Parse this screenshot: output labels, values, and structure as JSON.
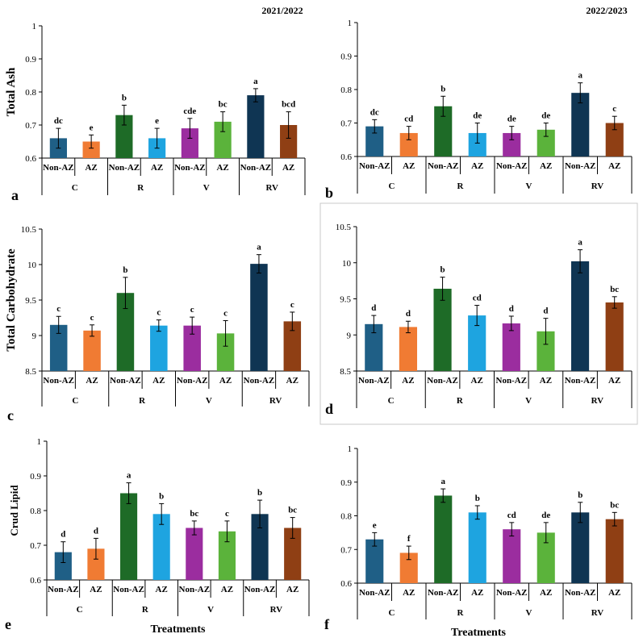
{
  "figure": {
    "season_labels": [
      "2021/2022",
      "2022/2023"
    ],
    "xlabel": "Treatments",
    "colors": [
      "#1f5f86",
      "#f07b33",
      "#1e6b27",
      "#1ea4e0",
      "#9b2d9f",
      "#5bb33b",
      "#0f3553",
      "#8f3f14"
    ]
  },
  "chart_data": [
    {
      "panel": "a",
      "type": "bar",
      "title": "2021/2022",
      "ylabel": "Total Ash",
      "xlabel": "",
      "ylim": [
        0.6,
        1
      ],
      "yticks": [
        0.6,
        0.7,
        0.8,
        0.9,
        1
      ],
      "ytick_labels": [
        "0.6",
        "0.7",
        "0.8",
        "0.9",
        "1"
      ],
      "groups": [
        "C",
        "R",
        "V",
        "RV"
      ],
      "categories": [
        "Non-AZ",
        "AZ",
        "Non-AZ",
        "AZ",
        "Non-AZ",
        "AZ",
        "Non-AZ",
        "AZ"
      ],
      "values": [
        0.66,
        0.65,
        0.73,
        0.66,
        0.69,
        0.71,
        0.79,
        0.7
      ],
      "errors": [
        0.03,
        0.02,
        0.03,
        0.03,
        0.03,
        0.03,
        0.02,
        0.04
      ],
      "letters": [
        "dc",
        "e",
        "b",
        "e",
        "cde",
        "bc",
        "a",
        "bcd"
      ]
    },
    {
      "panel": "b",
      "type": "bar",
      "title": "2022/2023",
      "ylabel": "",
      "xlabel": "",
      "ylim": [
        0.6,
        1
      ],
      "yticks": [
        0.6,
        0.7,
        0.8,
        0.9,
        1
      ],
      "ytick_labels": [
        "0.6",
        "0.7",
        "0.8",
        "0.9",
        "1"
      ],
      "groups": [
        "C",
        "R",
        "V",
        "RV"
      ],
      "categories": [
        "Non-AZ",
        "AZ",
        "Non-AZ",
        "AZ",
        "Non-AZ",
        "AZ",
        "Non-AZ",
        "AZ"
      ],
      "values": [
        0.69,
        0.67,
        0.75,
        0.67,
        0.67,
        0.68,
        0.79,
        0.7
      ],
      "errors": [
        0.02,
        0.02,
        0.03,
        0.03,
        0.02,
        0.02,
        0.03,
        0.02
      ],
      "letters": [
        "dc",
        "cd",
        "b",
        "de",
        "de",
        "de",
        "a",
        "c"
      ]
    },
    {
      "panel": "c",
      "type": "bar",
      "title": "",
      "ylabel": "Total Carbohydrate",
      "xlabel": "",
      "ylim": [
        8.5,
        10.5
      ],
      "yticks": [
        8.5,
        9,
        9.5,
        10,
        10.5
      ],
      "ytick_labels": [
        "8.5",
        "9",
        "9.5",
        "10",
        "10.5"
      ],
      "groups": [
        "C",
        "R",
        "V",
        "RV"
      ],
      "categories": [
        "Non-AZ",
        "AZ",
        "Non-AZ",
        "AZ",
        "Non-AZ",
        "AZ",
        "Non-AZ",
        "AZ"
      ],
      "values": [
        9.15,
        9.07,
        9.6,
        9.14,
        9.14,
        9.03,
        10.01,
        9.2
      ],
      "errors": [
        0.12,
        0.08,
        0.22,
        0.08,
        0.12,
        0.18,
        0.13,
        0.13
      ],
      "letters": [
        "c",
        "c",
        "b",
        "c",
        "c",
        "c",
        "a",
        "c"
      ]
    },
    {
      "panel": "d",
      "type": "bar",
      "title": "",
      "ylabel": "",
      "xlabel": "",
      "ylim": [
        8.5,
        10.5
      ],
      "yticks": [
        8.5,
        9,
        9.5,
        10,
        10.5
      ],
      "ytick_labels": [
        "8.5",
        "9",
        "9.5",
        "10",
        "10.5"
      ],
      "groups": [
        "C",
        "R",
        "V",
        "RV"
      ],
      "categories": [
        "Non-AZ",
        "AZ",
        "Non-AZ",
        "AZ",
        "Non-AZ",
        "AZ",
        "Non-AZ",
        "AZ"
      ],
      "values": [
        9.15,
        9.11,
        9.64,
        9.27,
        9.16,
        9.05,
        10.02,
        9.45
      ],
      "errors": [
        0.12,
        0.08,
        0.16,
        0.14,
        0.1,
        0.18,
        0.16,
        0.08
      ],
      "letters": [
        "d",
        "d",
        "b",
        "cd",
        "d",
        "d",
        "a",
        "bc"
      ]
    },
    {
      "panel": "e",
      "type": "bar",
      "title": "",
      "ylabel": "Crud Lipid",
      "xlabel": "Treatments",
      "ylim": [
        0.6,
        1
      ],
      "yticks": [
        0.6,
        0.7,
        0.8,
        0.9,
        1
      ],
      "ytick_labels": [
        "0.6",
        "0.7",
        "0.8",
        "0.9",
        "1"
      ],
      "groups": [
        "C",
        "R",
        "V",
        "RV"
      ],
      "categories": [
        "Non-AZ",
        "AZ",
        "Non-AZ",
        "AZ",
        "Non-AZ",
        "AZ",
        "Non-AZ",
        "AZ"
      ],
      "values": [
        0.68,
        0.69,
        0.85,
        0.79,
        0.75,
        0.74,
        0.79,
        0.75
      ],
      "errors": [
        0.03,
        0.03,
        0.03,
        0.03,
        0.02,
        0.03,
        0.04,
        0.03
      ],
      "letters": [
        "d",
        "d",
        "a",
        "b",
        "bc",
        "c",
        "b",
        "bc"
      ]
    },
    {
      "panel": "f",
      "type": "bar",
      "title": "",
      "ylabel": "",
      "xlabel": "Treatments",
      "ylim": [
        0.6,
        1
      ],
      "yticks": [
        0.6,
        0.7,
        0.8,
        0.9,
        1
      ],
      "ytick_labels": [
        "0.6",
        "0.7",
        "0.8",
        "0.9",
        "1"
      ],
      "groups": [
        "C",
        "R",
        "V",
        "RV"
      ],
      "categories": [
        "Non-AZ",
        "AZ",
        "Non-AZ",
        "AZ",
        "Non-AZ",
        "AZ",
        "Non-AZ",
        "AZ"
      ],
      "values": [
        0.73,
        0.69,
        0.86,
        0.81,
        0.76,
        0.75,
        0.81,
        0.79
      ],
      "errors": [
        0.02,
        0.02,
        0.02,
        0.02,
        0.02,
        0.03,
        0.03,
        0.02
      ],
      "letters": [
        "e",
        "f",
        "a",
        "b",
        "cd",
        "de",
        "b",
        "bc"
      ]
    }
  ]
}
